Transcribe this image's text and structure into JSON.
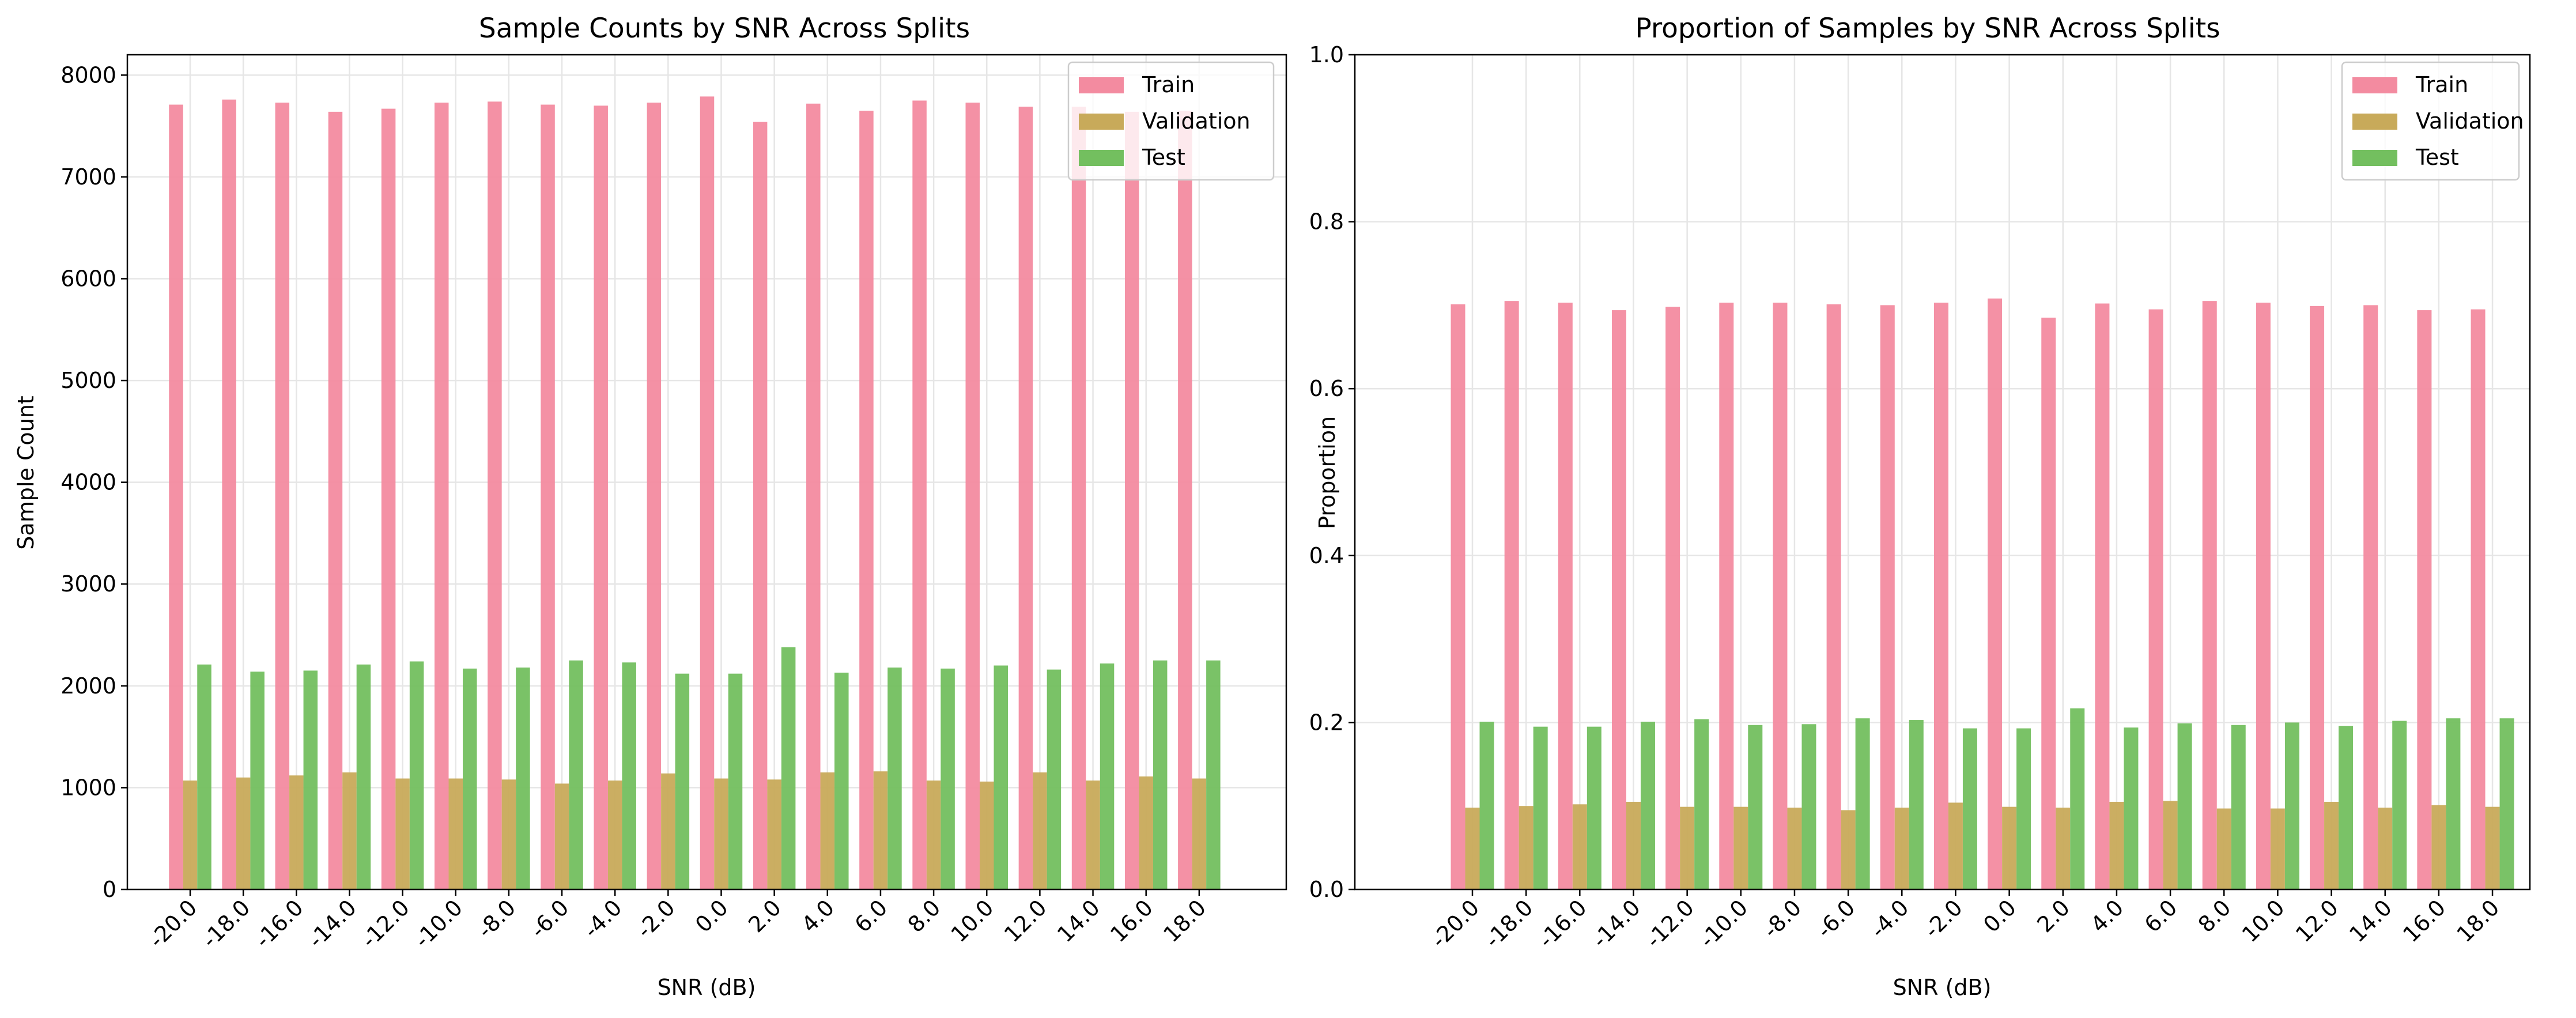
{
  "colors": {
    "train": "#f38ba0",
    "validation": "#c8aa5a",
    "test": "#73bf5f"
  },
  "chart_data": [
    {
      "type": "bar",
      "title": "Sample Counts by SNR Across Splits",
      "xlabel": "SNR (dB)",
      "ylabel": "Sample Count",
      "ylim": [
        0,
        8200
      ],
      "yticks": [
        0,
        1000,
        2000,
        3000,
        4000,
        5000,
        6000,
        7000,
        8000
      ],
      "yticklabels": [
        "0",
        "1000",
        "2000",
        "3000",
        "4000",
        "5000",
        "6000",
        "7000",
        "8000"
      ],
      "grid": true,
      "legend_position": "top-right",
      "categories": [
        "-20.0",
        "-18.0",
        "-16.0",
        "-14.0",
        "-12.0",
        "-10.0",
        "-8.0",
        "-6.0",
        "-4.0",
        "-2.0",
        "0.0",
        "2.0",
        "4.0",
        "6.0",
        "8.0",
        "10.0",
        "12.0",
        "14.0",
        "16.0",
        "18.0"
      ],
      "series": [
        {
          "name": "Train",
          "color": "#f38ba0",
          "values": [
            7710,
            7760,
            7730,
            7640,
            7670,
            7730,
            7740,
            7710,
            7700,
            7730,
            7790,
            7540,
            7720,
            7650,
            7750,
            7730,
            7690,
            7690,
            7640,
            7650
          ]
        },
        {
          "name": "Validation",
          "color": "#c8aa5a",
          "values": [
            1070,
            1100,
            1120,
            1150,
            1090,
            1090,
            1080,
            1040,
            1070,
            1140,
            1090,
            1080,
            1150,
            1160,
            1070,
            1060,
            1150,
            1070,
            1110,
            1090
          ]
        },
        {
          "name": "Test",
          "color": "#73bf5f",
          "values": [
            2210,
            2140,
            2150,
            2210,
            2240,
            2170,
            2180,
            2250,
            2230,
            2120,
            2120,
            2380,
            2130,
            2180,
            2170,
            2200,
            2160,
            2220,
            2250,
            2250
          ]
        }
      ]
    },
    {
      "type": "bar",
      "title": "Proportion of Samples by SNR Across Splits",
      "xlabel": "SNR (dB)",
      "ylabel": "Proportion",
      "ylim": [
        0,
        1.0
      ],
      "yticks": [
        0,
        0.2,
        0.4,
        0.6,
        0.8,
        1.0
      ],
      "yticklabels": [
        "0.0",
        "0.2",
        "0.4",
        "0.6",
        "0.8",
        "1.0"
      ],
      "grid": true,
      "legend_position": "top-right",
      "categories": [
        "-20.0",
        "-18.0",
        "-16.0",
        "-14.0",
        "-12.0",
        "-10.0",
        "-8.0",
        "-6.0",
        "-4.0",
        "-2.0",
        "0.0",
        "2.0",
        "4.0",
        "6.0",
        "8.0",
        "10.0",
        "12.0",
        "14.0",
        "16.0",
        "18.0"
      ],
      "series": [
        {
          "name": "Train",
          "color": "#f38ba0",
          "values": [
            0.701,
            0.705,
            0.703,
            0.694,
            0.698,
            0.703,
            0.703,
            0.701,
            0.7,
            0.703,
            0.708,
            0.685,
            0.702,
            0.695,
            0.705,
            0.703,
            0.699,
            0.7,
            0.694,
            0.695
          ]
        },
        {
          "name": "Validation",
          "color": "#c8aa5a",
          "values": [
            0.098,
            0.1,
            0.102,
            0.105,
            0.099,
            0.099,
            0.098,
            0.095,
            0.098,
            0.104,
            0.099,
            0.098,
            0.105,
            0.106,
            0.097,
            0.097,
            0.105,
            0.098,
            0.101,
            0.099
          ]
        },
        {
          "name": "Test",
          "color": "#73bf5f",
          "values": [
            0.201,
            0.195,
            0.195,
            0.201,
            0.204,
            0.197,
            0.198,
            0.205,
            0.203,
            0.193,
            0.193,
            0.217,
            0.194,
            0.199,
            0.197,
            0.2,
            0.196,
            0.202,
            0.205,
            0.205
          ]
        }
      ]
    }
  ]
}
